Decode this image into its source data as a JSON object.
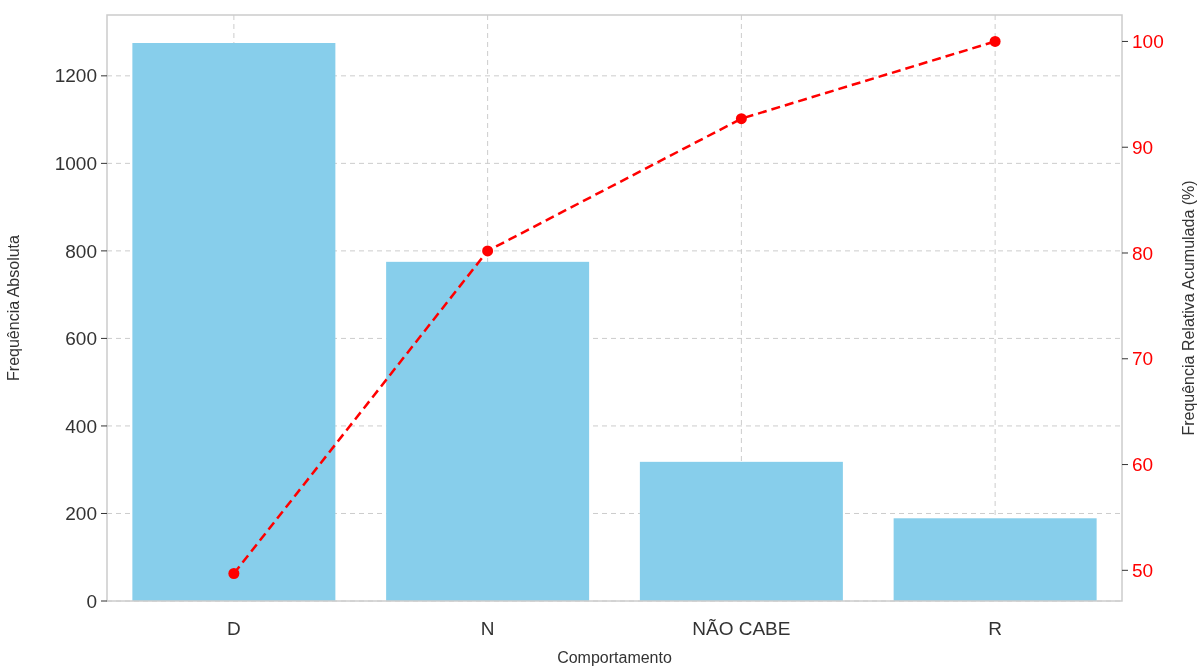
{
  "chart_data": {
    "type": "bar",
    "xlabel": "Comportamento",
    "ylabel": "Frequência Absoluta",
    "y2label": "Frequência Relativa Acumulada (%)",
    "categories": [
      "D",
      "N",
      "NÃO CABE",
      "R"
    ],
    "series": [
      {
        "color": "#87ceeb",
        "values": [
          1275,
          775,
          318,
          189
        ]
      },
      {
        "type": "line",
        "axis": "y2",
        "color": "#ff0000",
        "values": [
          49.7,
          80.2,
          92.7,
          100
        ]
      }
    ],
    "ylim": [
      0,
      1339
    ],
    "yticks": [
      0,
      200,
      400,
      600,
      800,
      1000,
      1200
    ],
    "y2lim": [
      47.1,
      102.5
    ],
    "y2ticks": [
      50,
      60,
      70,
      80,
      90,
      100
    ],
    "grid": true,
    "marker": "circle",
    "line_style": "dashed"
  }
}
